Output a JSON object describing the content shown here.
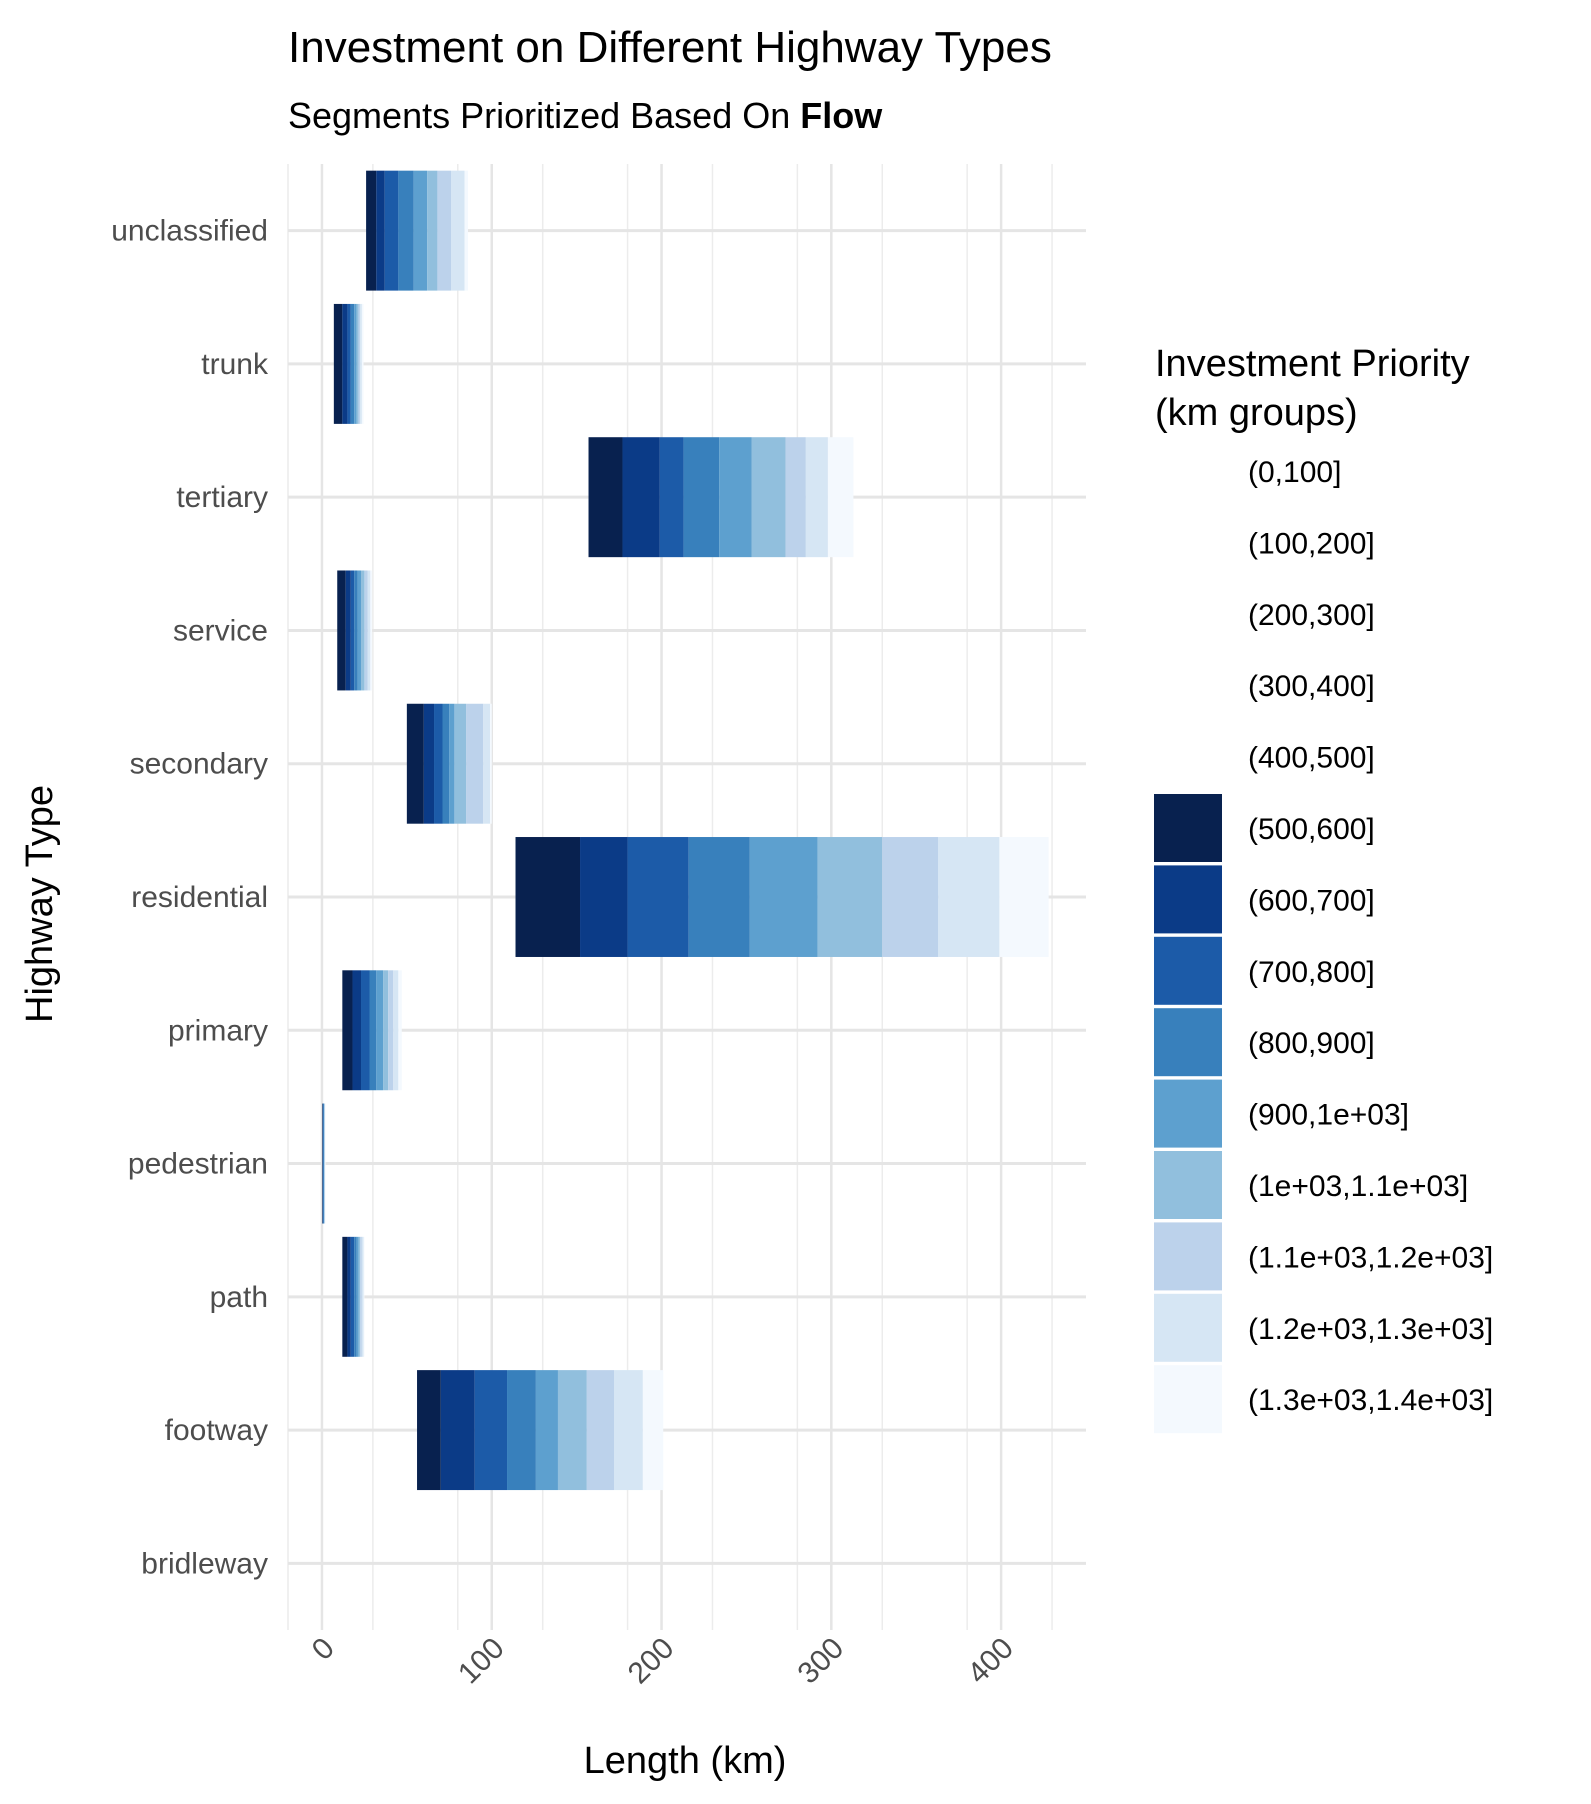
{
  "chart_data": {
    "type": "bar",
    "orientation": "horizontal",
    "stacked": true,
    "title": "Investment on Different Highway Types",
    "subtitle_prefix": "Segments Prioritized Based On ",
    "subtitle_bold": "Flow",
    "xlabel": "Length (km)",
    "ylabel": "Highway Type",
    "xlim": [
      -20,
      450
    ],
    "x_ticks": [
      0,
      100,
      200,
      300,
      400
    ],
    "grid": true,
    "legend_position": "right",
    "legend_title": [
      "Investment Priority",
      "(km groups)"
    ],
    "legend": [
      {
        "label": "(0,100]",
        "color": "#ffffff"
      },
      {
        "label": "(100,200]",
        "color": "#ffffff"
      },
      {
        "label": "(200,300]",
        "color": "#ffffff"
      },
      {
        "label": "(300,400]",
        "color": "#ffffff"
      },
      {
        "label": "(400,500]",
        "color": "#ffffff"
      },
      {
        "label": "(500,600]",
        "color": "#08214f"
      },
      {
        "label": "(600,700]",
        "color": "#0b3b87"
      },
      {
        "label": "(700,800]",
        "color": "#1c5ba8"
      },
      {
        "label": "(800,900]",
        "color": "#3880bc"
      },
      {
        "label": "(900,1e+03]",
        "color": "#5da0cf"
      },
      {
        "label": "(1e+03,1.1e+03]",
        "color": "#91bfdd"
      },
      {
        "label": "(1.1e+03,1.2e+03]",
        "color": "#bcd2eb"
      },
      {
        "label": "(1.2e+03,1.3e+03]",
        "color": "#d6e6f4"
      },
      {
        "label": "(1.3e+03,1.4e+03]",
        "color": "#f4f9fe"
      }
    ],
    "categories": [
      "bridleway",
      "footway",
      "path",
      "pedestrian",
      "primary",
      "residential",
      "secondary",
      "service",
      "tertiary",
      "trunk",
      "unclassified"
    ],
    "bars": [
      {
        "category": "bridleway",
        "segments": []
      },
      {
        "category": "footway",
        "segments": [
          [
            56,
            70
          ],
          [
            70,
            90
          ],
          [
            90,
            109
          ],
          [
            109,
            126
          ],
          [
            126,
            139
          ],
          [
            139,
            156
          ],
          [
            156,
            172
          ],
          [
            172,
            189
          ],
          [
            189,
            201
          ]
        ]
      },
      {
        "category": "path",
        "segments": [
          [
            12,
            15
          ],
          [
            15,
            17
          ],
          [
            17,
            19
          ],
          [
            19,
            20.5
          ],
          [
            20.5,
            21.5
          ],
          [
            21.5,
            22.5
          ],
          [
            22.5,
            23.5
          ],
          [
            23.5,
            24.5
          ],
          [
            24.5,
            25
          ]
        ]
      },
      {
        "category": "pedestrian",
        "segments": [
          [
            0.2,
            0.4
          ],
          [
            0.4,
            0.6
          ],
          [
            0.6,
            0.8
          ],
          [
            0.8,
            1.0
          ],
          [
            1.0,
            1.2
          ],
          [
            1.2,
            1.4
          ],
          [
            1.4,
            1.6
          ],
          [
            1.6,
            1.8
          ],
          [
            1.8,
            2.0
          ]
        ]
      },
      {
        "category": "primary",
        "segments": [
          [
            12,
            18
          ],
          [
            18,
            23
          ],
          [
            23,
            28
          ],
          [
            28,
            32
          ],
          [
            32,
            36
          ],
          [
            36,
            39
          ],
          [
            39,
            42
          ],
          [
            42,
            45
          ],
          [
            45,
            47
          ]
        ]
      },
      {
        "category": "residential",
        "segments": [
          [
            114,
            152
          ],
          [
            152,
            180
          ],
          [
            180,
            216
          ],
          [
            216,
            252
          ],
          [
            252,
            292
          ],
          [
            292,
            330
          ],
          [
            330,
            363
          ],
          [
            363,
            399
          ],
          [
            399,
            428
          ]
        ]
      },
      {
        "category": "secondary",
        "segments": [
          [
            50,
            60
          ],
          [
            60,
            66
          ],
          [
            66,
            71
          ],
          [
            71,
            75
          ],
          [
            75,
            78
          ],
          [
            78,
            85
          ],
          [
            85,
            95
          ],
          [
            95,
            99
          ],
          [
            99,
            100
          ]
        ]
      },
      {
        "category": "service",
        "segments": [
          [
            9,
            14
          ],
          [
            14,
            17
          ],
          [
            17,
            19
          ],
          [
            19,
            21
          ],
          [
            21,
            23
          ],
          [
            23,
            25
          ],
          [
            25,
            27
          ],
          [
            27,
            28.5
          ],
          [
            28.5,
            29.5
          ]
        ]
      },
      {
        "category": "tertiary",
        "segments": [
          [
            157,
            177
          ],
          [
            177,
            199
          ],
          [
            199,
            213
          ],
          [
            213,
            234
          ],
          [
            234,
            253
          ],
          [
            253,
            273
          ],
          [
            273,
            285
          ],
          [
            285,
            298
          ],
          [
            298,
            313
          ]
        ]
      },
      {
        "category": "trunk",
        "segments": [
          [
            7,
            12
          ],
          [
            12,
            15
          ],
          [
            15,
            17
          ],
          [
            17,
            19
          ],
          [
            19,
            20.5
          ],
          [
            20.5,
            21.5
          ],
          [
            21.5,
            22.5
          ],
          [
            22.5,
            23.5
          ],
          [
            23.5,
            24.5
          ]
        ]
      },
      {
        "category": "unclassified",
        "segments": [
          [
            26,
            32
          ],
          [
            32,
            37
          ],
          [
            37,
            45
          ],
          [
            45,
            54
          ],
          [
            54,
            62
          ],
          [
            62,
            68
          ],
          [
            68,
            76
          ],
          [
            76,
            84
          ],
          [
            84,
            86
          ]
        ]
      }
    ],
    "segment_colors": [
      "#08214f",
      "#0b3b87",
      "#1c5ba8",
      "#3880bc",
      "#5da0cf",
      "#91bfdd",
      "#bcd2eb",
      "#d6e6f4",
      "#f4f9fe"
    ]
  }
}
